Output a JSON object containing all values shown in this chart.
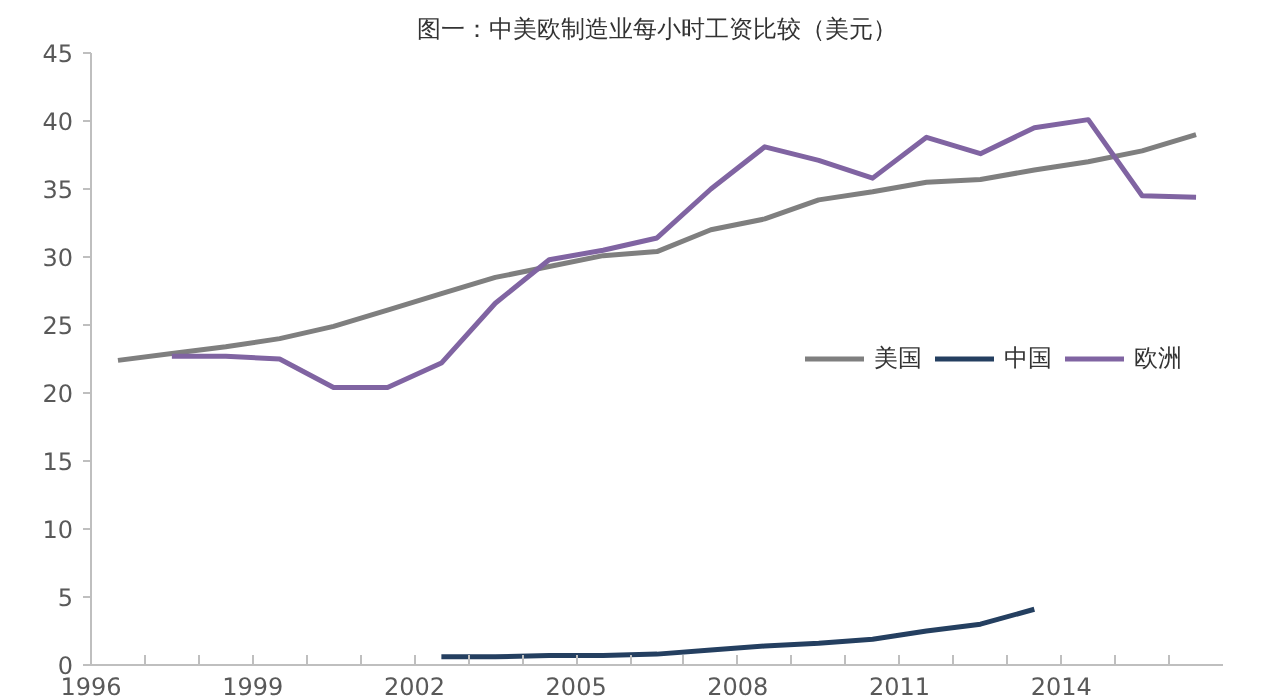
{
  "chart_data": {
    "type": "line",
    "title": "图一：中美欧制造业每小时工资比较（美元）",
    "x": [
      1996,
      1997,
      1998,
      1999,
      2000,
      2001,
      2002,
      2003,
      2004,
      2005,
      2006,
      2007,
      2008,
      2009,
      2010,
      2011,
      2012,
      2013,
      2014,
      2015,
      2016
    ],
    "series": [
      {
        "name": "美国",
        "color": "#7f7f7f",
        "values": [
          22.4,
          22.9,
          23.4,
          24.0,
          24.9,
          26.1,
          27.3,
          28.5,
          29.3,
          30.1,
          30.4,
          32.0,
          32.8,
          34.2,
          34.8,
          35.5,
          35.7,
          36.4,
          37.0,
          37.8,
          39.0
        ]
      },
      {
        "name": "中国",
        "color": "#243f60",
        "values": [
          null,
          null,
          null,
          null,
          null,
          null,
          0.6,
          0.6,
          0.7,
          0.7,
          0.8,
          1.1,
          1.4,
          1.6,
          1.9,
          2.5,
          3.0,
          4.1,
          null,
          null,
          null
        ]
      },
      {
        "name": "欧洲",
        "color": "#8064a2",
        "values": [
          null,
          22.7,
          22.7,
          22.5,
          20.4,
          20.4,
          22.2,
          26.6,
          29.8,
          30.5,
          31.4,
          35.0,
          38.1,
          37.1,
          35.8,
          38.8,
          37.6,
          39.5,
          40.1,
          34.5,
          34.4
        ]
      }
    ],
    "xlim": [
      1995.5,
      2016.5
    ],
    "xticks": [
      {
        "value": 1995.5,
        "label": "1996"
      },
      {
        "value": 1996.5,
        "label": null
      },
      {
        "value": 1997.5,
        "label": null
      },
      {
        "value": 1998.5,
        "label": "1999"
      },
      {
        "value": 1999.5,
        "label": null
      },
      {
        "value": 2000.5,
        "label": null
      },
      {
        "value": 2001.5,
        "label": "2002"
      },
      {
        "value": 2002.5,
        "label": null
      },
      {
        "value": 2003.5,
        "label": null
      },
      {
        "value": 2004.5,
        "label": "2005"
      },
      {
        "value": 2005.5,
        "label": null
      },
      {
        "value": 2006.5,
        "label": null
      },
      {
        "value": 2007.5,
        "label": "2008"
      },
      {
        "value": 2008.5,
        "label": null
      },
      {
        "value": 2009.5,
        "label": null
      },
      {
        "value": 2010.5,
        "label": "2011"
      },
      {
        "value": 2011.5,
        "label": null
      },
      {
        "value": 2012.5,
        "label": null
      },
      {
        "value": 2013.5,
        "label": "2014"
      },
      {
        "value": 2014.5,
        "label": null
      },
      {
        "value": 2015.5,
        "label": null
      }
    ],
    "ylim": [
      0,
      45
    ],
    "yticks": [
      0,
      5,
      10,
      15,
      20,
      25,
      30,
      35,
      40,
      45
    ],
    "grid": false,
    "legend": "right",
    "marker": "none",
    "line_style": "solid"
  }
}
